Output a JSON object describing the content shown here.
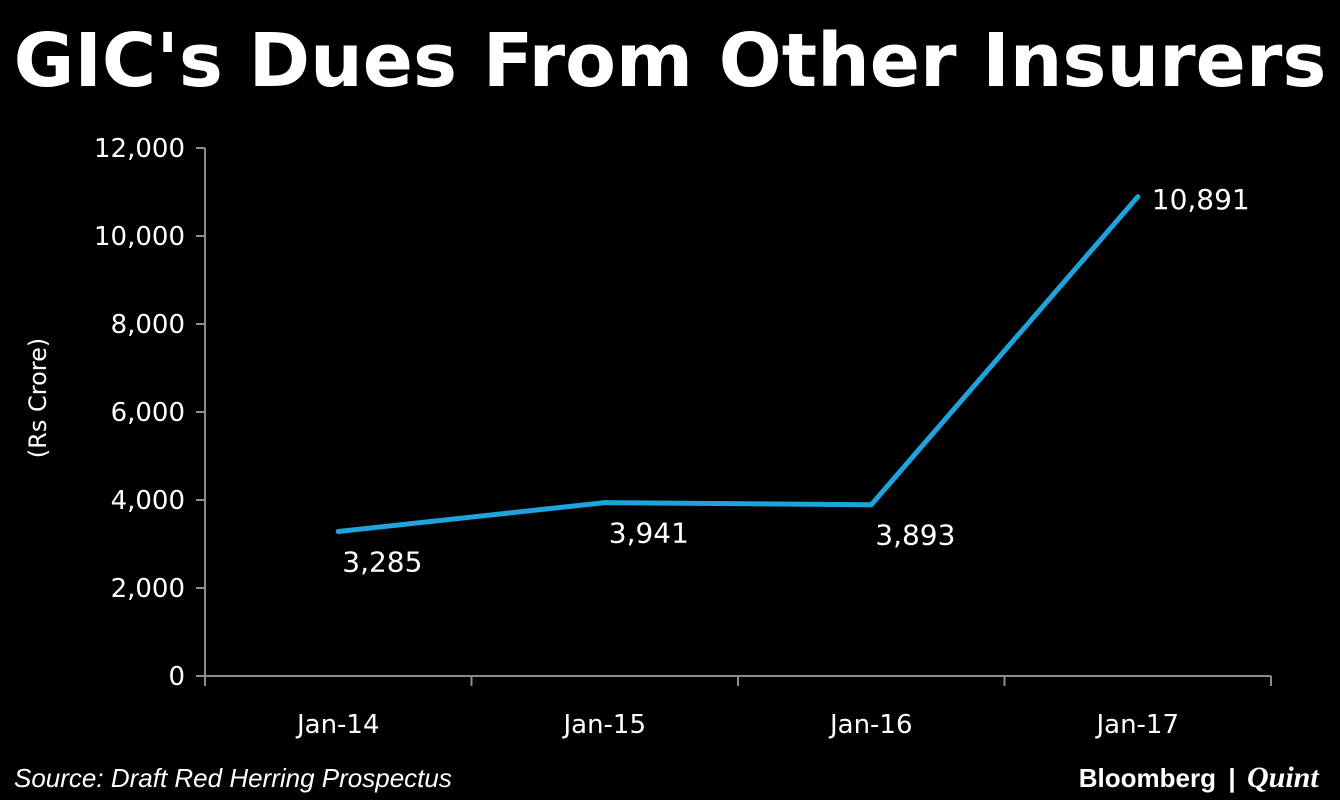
{
  "chart_data": {
    "type": "line",
    "title": "GIC's Dues From Other Insurers",
    "ylabel": "(Rs Crore)",
    "xlabel": "",
    "categories": [
      "Jan-14",
      "Jan-15",
      "Jan-16",
      "Jan-17"
    ],
    "series": [
      {
        "values": [
          3285,
          3941,
          3893,
          10891
        ],
        "data_labels": [
          "3,285",
          "3,941",
          "3,893",
          "10,891"
        ]
      }
    ],
    "ylim": [
      0,
      12000
    ],
    "yticks": [
      0,
      2000,
      4000,
      6000,
      8000,
      10000,
      12000
    ],
    "ytick_labels": [
      "0",
      "2,000",
      "4,000",
      "6,000",
      "8,000",
      "10,000",
      "12,000"
    ],
    "grid": false,
    "legend": "none",
    "line_color": "#1fa3dc",
    "background_color": "#000000",
    "axis_color": "#8c8c8c"
  },
  "footer": {
    "source": "Source: Draft Red Herring Prospectus",
    "brand_primary": "Bloomberg",
    "brand_separator": "|",
    "brand_secondary": "Quint"
  }
}
